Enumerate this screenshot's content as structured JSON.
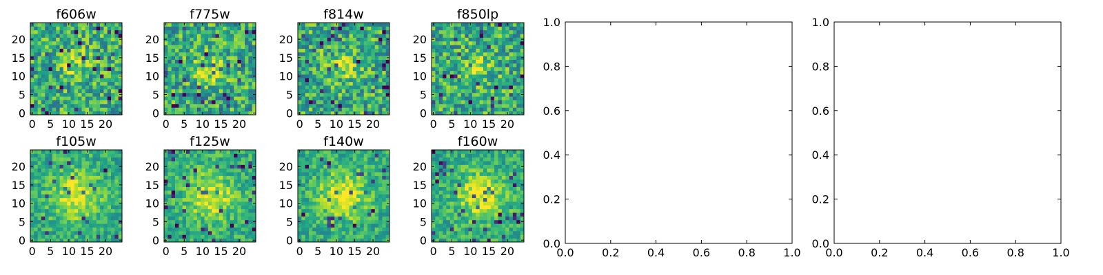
{
  "chart_data": [
    {
      "type": "heatmap",
      "title": "f606w",
      "grid_size": [
        25,
        25
      ],
      "colormap": "viridis",
      "x_ticks": [
        0,
        5,
        10,
        15,
        20
      ],
      "y_ticks": [
        0,
        5,
        10,
        15,
        20
      ],
      "xlim": [
        0,
        24
      ],
      "ylim": [
        0,
        24
      ],
      "cells": "25x25 noisy cutout image; values not individually readable from the figure",
      "source_center": [
        12,
        13
      ]
    },
    {
      "type": "heatmap",
      "title": "f775w",
      "grid_size": [
        25,
        25
      ],
      "colormap": "viridis",
      "x_ticks": [
        0,
        5,
        10,
        15,
        20
      ],
      "y_ticks": [
        0,
        5,
        10,
        15,
        20
      ],
      "xlim": [
        0,
        24
      ],
      "ylim": [
        0,
        24
      ],
      "cells": "25x25 noisy cutout image; values not individually readable from the figure",
      "source_center": [
        12,
        12
      ]
    },
    {
      "type": "heatmap",
      "title": "f814w",
      "grid_size": [
        25,
        25
      ],
      "colormap": "viridis",
      "x_ticks": [
        0,
        5,
        10,
        15,
        20
      ],
      "y_ticks": [
        0,
        5,
        10,
        15,
        20
      ],
      "xlim": [
        0,
        24
      ],
      "ylim": [
        0,
        24
      ],
      "cells": "25x25 noisy cutout image; values not individually readable from the figure",
      "source_center": [
        12,
        12
      ]
    },
    {
      "type": "heatmap",
      "title": "f850lp",
      "grid_size": [
        25,
        25
      ],
      "colormap": "viridis",
      "x_ticks": [
        0,
        5,
        10,
        15,
        20
      ],
      "y_ticks": [
        0,
        5,
        10,
        15,
        20
      ],
      "xlim": [
        0,
        24
      ],
      "ylim": [
        0,
        24
      ],
      "cells": "25x25 noisy cutout image; values not individually readable from the figure",
      "source_center": [
        12,
        12
      ]
    },
    {
      "type": "heatmap",
      "title": "f105w",
      "grid_size": [
        25,
        25
      ],
      "colormap": "viridis",
      "x_ticks": [
        0,
        5,
        10,
        15,
        20
      ],
      "y_ticks": [
        0,
        5,
        10,
        15,
        20
      ],
      "xlim": [
        0,
        24
      ],
      "ylim": [
        0,
        24
      ],
      "cells": "25x25 noisy cutout image; values not individually readable from the figure",
      "source_center": [
        12,
        12
      ]
    },
    {
      "type": "heatmap",
      "title": "f125w",
      "grid_size": [
        25,
        25
      ],
      "colormap": "viridis",
      "x_ticks": [
        0,
        5,
        10,
        15,
        20
      ],
      "y_ticks": [
        0,
        5,
        10,
        15,
        20
      ],
      "xlim": [
        0,
        24
      ],
      "ylim": [
        0,
        24
      ],
      "cells": "25x25 noisy cutout image; values not individually readable from the figure",
      "source_center": [
        12,
        12
      ]
    },
    {
      "type": "heatmap",
      "title": "f140w",
      "grid_size": [
        25,
        25
      ],
      "colormap": "viridis",
      "x_ticks": [
        0,
        5,
        10,
        15,
        20
      ],
      "y_ticks": [
        0,
        5,
        10,
        15,
        20
      ],
      "xlim": [
        0,
        24
      ],
      "ylim": [
        0,
        24
      ],
      "cells": "25x25 noisy cutout image; values not individually readable from the figure",
      "source_center": [
        12,
        12
      ]
    },
    {
      "type": "heatmap",
      "title": "f160w",
      "grid_size": [
        25,
        25
      ],
      "colormap": "viridis",
      "x_ticks": [
        0,
        5,
        10,
        15,
        20
      ],
      "y_ticks": [
        0,
        5,
        10,
        15,
        20
      ],
      "xlim": [
        0,
        24
      ],
      "ylim": [
        0,
        24
      ],
      "cells": "25x25 noisy cutout image; values not individually readable from the figure",
      "source_center": [
        13,
        12
      ]
    },
    {
      "type": "scatter",
      "title": "",
      "xlim": [
        0.0,
        1.0
      ],
      "ylim": [
        0.0,
        1.0
      ],
      "x_ticks": [
        "0.0",
        "0.2",
        "0.4",
        "0.6",
        "0.8",
        "1.0"
      ],
      "y_ticks": [
        "0.0",
        "0.2",
        "0.4",
        "0.6",
        "0.8",
        "1.0"
      ],
      "series": []
    },
    {
      "type": "scatter",
      "title": "",
      "xlim": [
        0.0,
        1.0
      ],
      "ylim": [
        0.0,
        1.0
      ],
      "x_ticks": [
        "0.0",
        "0.2",
        "0.4",
        "0.6",
        "0.8",
        "1.0"
      ],
      "y_ticks": [
        "0.0",
        "0.2",
        "0.4",
        "0.6",
        "0.8",
        "1.0"
      ],
      "series": []
    }
  ]
}
